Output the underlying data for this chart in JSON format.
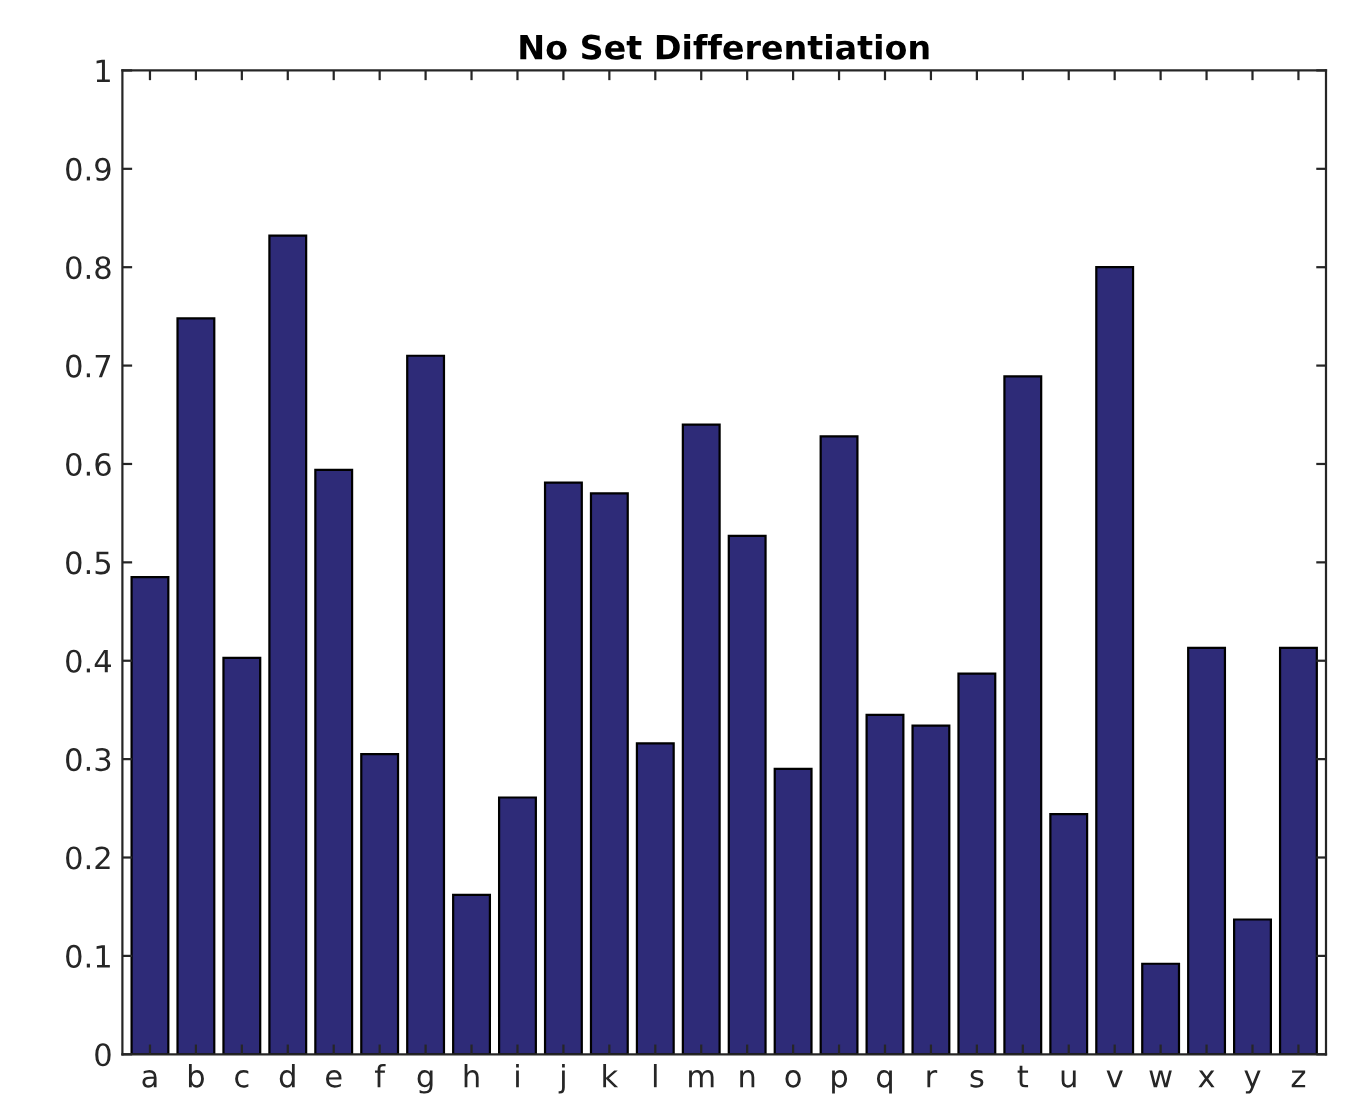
{
  "chart_data": {
    "type": "bar",
    "title": "No Set Differentiation",
    "categories": [
      "a",
      "b",
      "c",
      "d",
      "e",
      "f",
      "g",
      "h",
      "i",
      "j",
      "k",
      "l",
      "m",
      "n",
      "o",
      "p",
      "q",
      "r",
      "s",
      "t",
      "u",
      "v",
      "w",
      "x",
      "y",
      "z"
    ],
    "values": [
      0.485,
      0.748,
      0.403,
      0.832,
      0.594,
      0.305,
      0.71,
      0.162,
      0.261,
      0.581,
      0.57,
      0.316,
      0.64,
      0.527,
      0.29,
      0.628,
      0.345,
      0.334,
      0.387,
      0.689,
      0.244,
      0.8,
      0.092,
      0.413,
      0.137,
      0.413
    ],
    "color": "#2e2b78",
    "ylim": [
      0,
      1
    ],
    "yticks": [
      0,
      0.1,
      0.2,
      0.3,
      0.4,
      0.5,
      0.6,
      0.7,
      0.8,
      0.9,
      1
    ],
    "grid": false
  }
}
